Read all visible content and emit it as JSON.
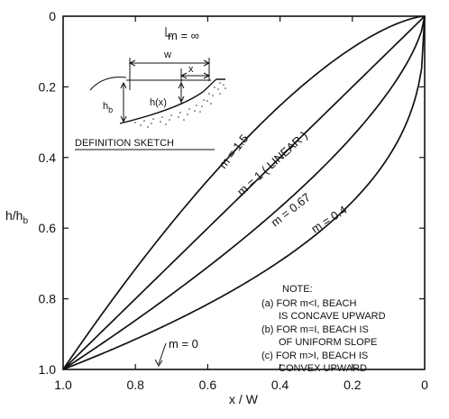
{
  "chart_data": {
    "type": "line",
    "xlabel": "x / W",
    "ylabel": "h/h",
    "ylabel_sub": "b",
    "x_ticks": [
      "1.0",
      "0.8",
      "0.6",
      "0.4",
      "0.2",
      "0"
    ],
    "y_ticks": [
      "0",
      "0.2",
      "0.4",
      "0.6",
      "0.8",
      "1.0"
    ],
    "xlim": [
      1.0,
      0.0
    ],
    "ylim": [
      0.0,
      1.0
    ],
    "x_reversed": true,
    "y_reversed": true,
    "grid": false,
    "formula": "h/h_b = (x/W)^m",
    "series": [
      {
        "name": "m = 0",
        "m": 0
      },
      {
        "name": "m = 0.4",
        "m": 0.4
      },
      {
        "name": "m = 0.67",
        "m": 0.67
      },
      {
        "name": "m = 1 ( LINEAR )",
        "m": 1
      },
      {
        "name": "m = 1.5",
        "m": 1.5
      },
      {
        "name": "m = ∞",
        "m": "inf"
      }
    ],
    "annotations": {
      "note_title": "NOTE:",
      "note_lines": [
        "(a) FOR  m<I, BEACH",
        "IS CONCAVE UPWARD",
        "(b) FOR  m=I, BEACH IS",
        "OF UNIFORM SLOPE",
        "(c) FOR  m>I, BEACH IS",
        "CONVEX   UPWARD"
      ],
      "sketch_title": "DEFINITION SKETCH",
      "sketch_labels": {
        "w": "w",
        "x": "x",
        "hb": "h",
        "hb_sub": "b",
        "hx": "h(x)"
      }
    }
  }
}
